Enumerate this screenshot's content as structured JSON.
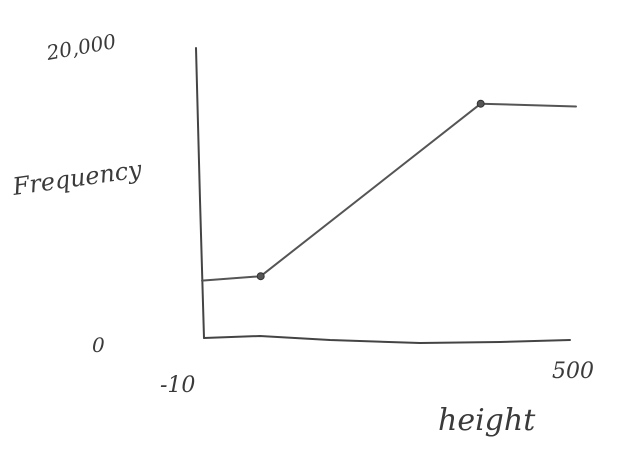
{
  "chart_data": {
    "type": "line",
    "xlabel": "height",
    "ylabel": "Frequency",
    "xlim": [
      -10,
      500
    ],
    "ylim": [
      0,
      20000
    ],
    "x_tick_labels": [
      "-10",
      "500"
    ],
    "y_tick_labels": [
      "0",
      "20,000"
    ],
    "series": [
      {
        "points": [
          {
            "x": -10,
            "y": 4100
          },
          {
            "x": 70,
            "y": 4400
          },
          {
            "x": 370,
            "y": 16300
          },
          {
            "x": 500,
            "y": 16100
          }
        ],
        "marked_points": [
          {
            "x": 70,
            "y": 4400
          },
          {
            "x": 370,
            "y": 16300
          }
        ]
      }
    ],
    "grid": false,
    "legend": false
  }
}
